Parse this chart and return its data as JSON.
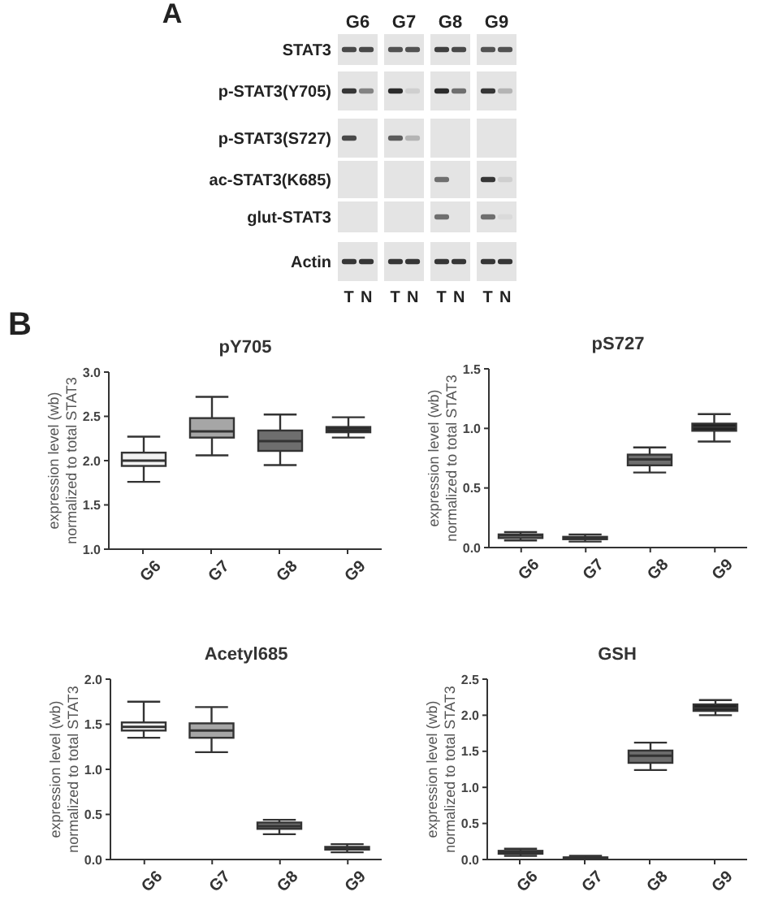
{
  "chart_data": [
    {
      "type": "other",
      "categories": [
        "G6",
        "G7",
        "G8",
        "G9"
      ],
      "y_categories": [
        "STAT3",
        "p-STAT3(Y705)",
        "p-STAT3(S727)",
        "ac-STAT3(K685)",
        "glut-STAT3",
        "Actin"
      ],
      "annotations": [
        "A",
        "T",
        "N",
        "T",
        "N",
        "T",
        "N",
        "T",
        "N"
      ]
    },
    {
      "type": "box",
      "title": "pY705",
      "ylabel": "expression level (wb)\nnormalized to total STAT3",
      "annotations": [
        "B"
      ],
      "categories": [
        "G6",
        "G7",
        "G8",
        "G9"
      ],
      "boxes": [
        {
          "low": 1.76,
          "q1": 1.94,
          "median": 2.0,
          "q3": 2.09,
          "high": 2.27
        },
        {
          "low": 2.06,
          "q1": 2.26,
          "median": 2.33,
          "q3": 2.48,
          "high": 2.72
        },
        {
          "low": 1.95,
          "q1": 2.11,
          "median": 2.22,
          "q3": 2.34,
          "high": 2.52
        },
        {
          "low": 2.26,
          "q1": 2.32,
          "median": 2.35,
          "q3": 2.38,
          "high": 2.49
        }
      ],
      "colors": [
        "#f2f2f2",
        "#a6a6a6",
        "#6e6e6e",
        "#1f1f1f"
      ],
      "ylim": [
        1,
        3
      ],
      "yticks": [
        {
          "value": 1,
          "label": "1.0"
        },
        {
          "value": 1.5,
          "label": "1.5"
        },
        {
          "value": 2,
          "label": "2.0"
        },
        {
          "value": 2.5,
          "label": "2.5"
        },
        {
          "value": 3,
          "label": "3.0"
        }
      ]
    },
    {
      "type": "box",
      "title": "pS727",
      "ylabel": "expression level (wb)\nnormalized to total STAT3",
      "categories": [
        "G6",
        "G7",
        "G8",
        "G9"
      ],
      "boxes": [
        {
          "low": 0.06,
          "q1": 0.08,
          "median": 0.1,
          "q3": 0.11,
          "high": 0.13
        },
        {
          "low": 0.05,
          "q1": 0.07,
          "median": 0.08,
          "q3": 0.09,
          "high": 0.11
        },
        {
          "low": 0.63,
          "q1": 0.69,
          "median": 0.74,
          "q3": 0.78,
          "high": 0.84
        },
        {
          "low": 0.89,
          "q1": 0.98,
          "median": 1.01,
          "q3": 1.04,
          "high": 1.12
        }
      ],
      "colors": [
        "#f2f2f2",
        "#a6a6a6",
        "#6e6e6e",
        "#1f1f1f"
      ],
      "ylim": [
        0,
        1.5
      ],
      "yticks": [
        {
          "value": 0,
          "label": "0.0"
        },
        {
          "value": 0.5,
          "label": "0.5"
        },
        {
          "value": 1,
          "label": "1.0"
        },
        {
          "value": 1.5,
          "label": "1.5"
        }
      ]
    },
    {
      "type": "box",
      "title": "Acetyl685",
      "ylabel": "expression level (wb)\nnormalized to total STAT3",
      "categories": [
        "G6",
        "G7",
        "G8",
        "G9"
      ],
      "boxes": [
        {
          "low": 1.35,
          "q1": 1.43,
          "median": 1.47,
          "q3": 1.52,
          "high": 1.75
        },
        {
          "low": 1.19,
          "q1": 1.35,
          "median": 1.43,
          "q3": 1.51,
          "high": 1.69
        },
        {
          "low": 0.28,
          "q1": 0.34,
          "median": 0.37,
          "q3": 0.41,
          "high": 0.44
        },
        {
          "low": 0.08,
          "q1": 0.11,
          "median": 0.13,
          "q3": 0.14,
          "high": 0.17
        }
      ],
      "colors": [
        "#f2f2f2",
        "#a6a6a6",
        "#6e6e6e",
        "#1f1f1f"
      ],
      "ylim": [
        0,
        2
      ],
      "yticks": [
        {
          "value": 0,
          "label": "0.0"
        },
        {
          "value": 0.5,
          "label": "0.5"
        },
        {
          "value": 1,
          "label": "1.0"
        },
        {
          "value": 1.5,
          "label": "1.5"
        },
        {
          "value": 2,
          "label": "2.0"
        }
      ]
    },
    {
      "type": "box",
      "title": "GSH",
      "ylabel": "expression level (wb)\nnormalized to total STAT3",
      "categories": [
        "G6",
        "G7",
        "G8",
        "G9"
      ],
      "boxes": [
        {
          "low": 0.05,
          "q1": 0.08,
          "median": 0.1,
          "q3": 0.12,
          "high": 0.15
        },
        {
          "low": 0.0,
          "q1": 0.01,
          "median": 0.02,
          "q3": 0.03,
          "high": 0.05
        },
        {
          "low": 1.24,
          "q1": 1.34,
          "median": 1.44,
          "q3": 1.51,
          "high": 1.62
        },
        {
          "low": 2.0,
          "q1": 2.06,
          "median": 2.1,
          "q3": 2.15,
          "high": 2.21
        }
      ],
      "colors": [
        "#f2f2f2",
        "#a6a6a6",
        "#6e6e6e",
        "#1f1f1f"
      ],
      "ylim": [
        0,
        2.5
      ],
      "yticks": [
        {
          "value": 0,
          "label": "0.0"
        },
        {
          "value": 0.5,
          "label": "0.5"
        },
        {
          "value": 1,
          "label": "1.0"
        },
        {
          "value": 1.5,
          "label": "1.5"
        },
        {
          "value": 2,
          "label": "2.0"
        },
        {
          "value": 2.5,
          "label": "2.5"
        }
      ]
    }
  ]
}
